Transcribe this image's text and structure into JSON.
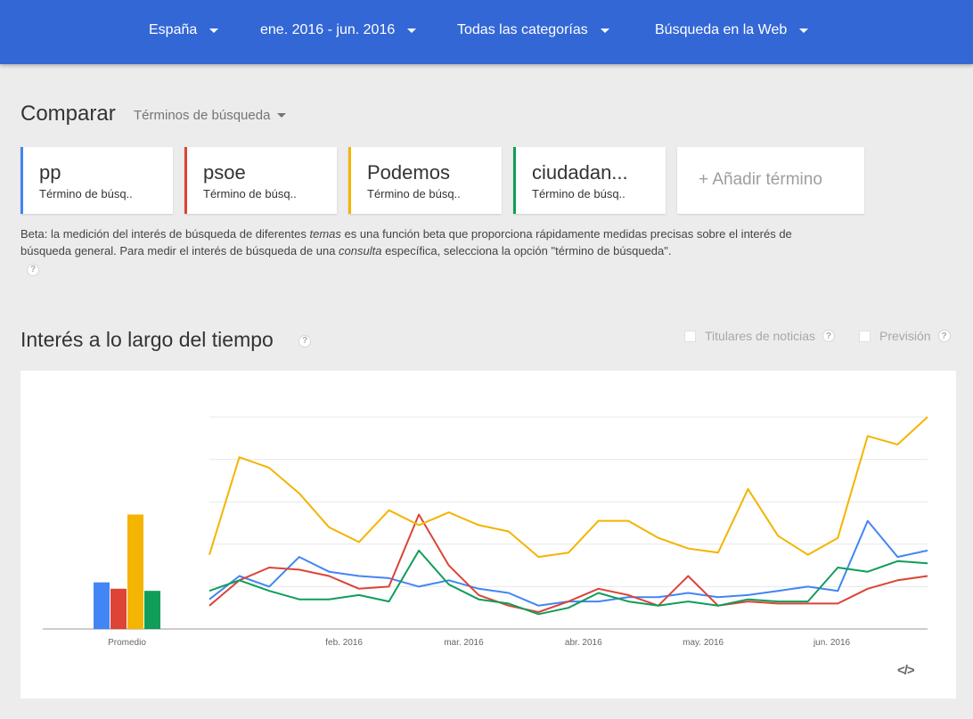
{
  "header": {
    "filters": [
      {
        "label": "España"
      },
      {
        "label": "ene. 2016 - jun. 2016"
      },
      {
        "label": "Todas las categorías"
      },
      {
        "label": "Búsqueda en la Web"
      }
    ]
  },
  "compare": {
    "title": "Comparar",
    "mode": "Términos de búsqueda",
    "terms": [
      {
        "name": "pp",
        "type": "Término de búsq..",
        "color": "#4285f4"
      },
      {
        "name": "psoe",
        "type": "Término de búsq..",
        "color": "#db4437"
      },
      {
        "name": "Podemos",
        "type": "Término de búsq..",
        "color": "#f4b400"
      },
      {
        "name": "ciudadan...",
        "type": "Término de búsq..",
        "color": "#0f9d58"
      }
    ],
    "add_label": "+ Añadir término",
    "beta_note": {
      "part1": "Beta: la medición del interés de búsqueda de diferentes ",
      "em1": "temas",
      "part2": " es una función beta que proporciona rápidamente medidas precisas sobre el interés de búsqueda general. Para medir el interés de búsqueda de una ",
      "em2": "consulta",
      "part3": " específica, selecciona la opción \"término de búsqueda\"."
    }
  },
  "interest": {
    "title": "Interés a lo largo del tiempo",
    "help": "?",
    "options": [
      {
        "label": "Titulares de noticias"
      },
      {
        "label": "Previsión"
      }
    ],
    "embed_icon": "code-embed-icon",
    "embed_glyph": "</>"
  },
  "chart_data": {
    "type": "line",
    "title": "",
    "xlabel": "",
    "ylabel": "",
    "ylim": [
      0,
      100
    ],
    "grid": true,
    "x_ticks": [
      "feb. 2016",
      "mar. 2016",
      "abr. 2016",
      "may. 2016",
      "jun. 2016"
    ],
    "x_tick_weeks": [
      4.5,
      8.5,
      12.5,
      16.5,
      20.8
    ],
    "averages_label": "Promedio",
    "averages": [
      {
        "name": "pp",
        "value": 22
      },
      {
        "name": "psoe",
        "value": 19
      },
      {
        "name": "Podemos",
        "value": 54
      },
      {
        "name": "ciudadan...",
        "value": 18
      }
    ],
    "series": [
      {
        "name": "pp",
        "color": "#4285f4",
        "values": [
          14,
          25,
          20,
          34,
          27,
          25,
          24,
          20,
          23,
          19,
          17,
          11,
          13,
          13,
          15,
          15,
          17,
          15,
          16,
          18,
          20,
          18,
          51,
          34,
          37
        ]
      },
      {
        "name": "psoe",
        "color": "#db4437",
        "values": [
          11,
          23,
          29,
          28,
          25,
          19,
          20,
          54,
          30,
          16,
          11,
          8,
          13,
          19,
          16,
          11,
          25,
          11,
          13,
          12,
          12,
          12,
          19,
          23,
          25
        ]
      },
      {
        "name": "Podemos",
        "color": "#f4b400",
        "values": [
          35,
          81,
          76,
          64,
          48,
          41,
          56,
          49,
          55,
          49,
          46,
          34,
          36,
          51,
          51,
          43,
          38,
          36,
          66,
          44,
          35,
          43,
          91,
          87,
          100
        ]
      },
      {
        "name": "ciudadan...",
        "color": "#0f9d58",
        "values": [
          18,
          23,
          18,
          14,
          14,
          16,
          13,
          37,
          21,
          14,
          12,
          7,
          10,
          17,
          13,
          11,
          13,
          11,
          14,
          13,
          13,
          29,
          27,
          32,
          31
        ]
      }
    ]
  }
}
